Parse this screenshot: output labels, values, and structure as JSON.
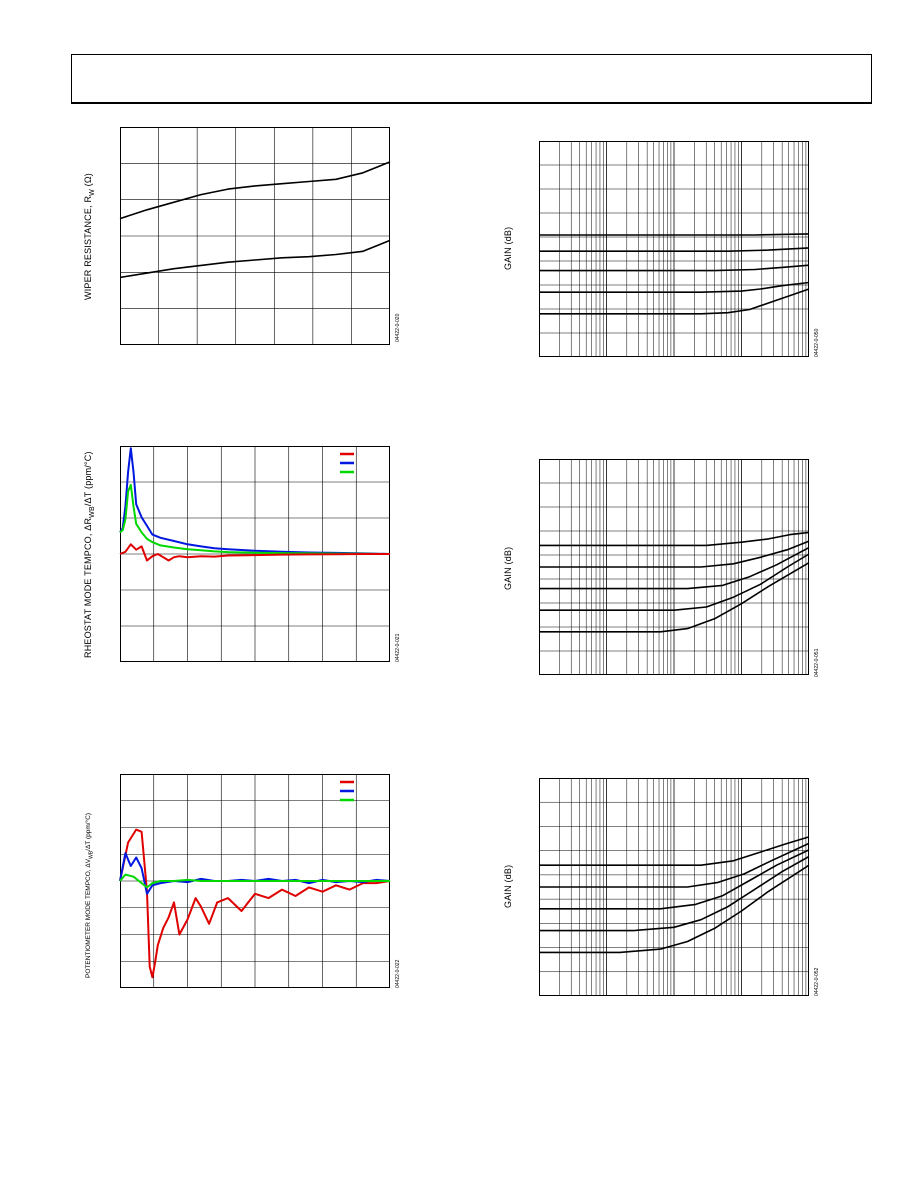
{
  "figures": [
    {
      "id": "fig-wiper",
      "ylabel": "WIPER RESISTANCE, R",
      "ylabel_sub": "W",
      "ylabel_suffix": " (Ω)",
      "figure_id": "04422-0-020"
    },
    {
      "id": "fig-rheostat",
      "ylabel": "RHEOSTAT MODE TEMPCO, ΔR",
      "ylabel_sub": "WB",
      "ylabel_suffix": "/ΔT (ppm/°C)",
      "figure_id": "04422-0-021"
    },
    {
      "id": "fig-pot",
      "ylabel": "POTENTIOMETER MODE TEMPCO, ΔV",
      "ylabel_sub": "WB",
      "ylabel_suffix": "/ΔT (ppm/°C)",
      "figure_id": "04422-0-022"
    },
    {
      "id": "fig-gain1",
      "ylabel": "GAIN (dB)",
      "figure_id": "04422-0-050"
    },
    {
      "id": "fig-gain2",
      "ylabel": "GAIN (dB)",
      "figure_id": "04422-0-051"
    },
    {
      "id": "fig-gain3",
      "ylabel": "GAIN (dB)",
      "figure_id": "04422-0-052"
    }
  ],
  "chart_data": [
    {
      "type": "line",
      "series": [
        {
          "color": "#000000",
          "x": [
            0,
            0.1,
            0.2,
            0.3,
            0.4,
            0.5,
            0.6,
            0.7,
            0.8,
            0.9,
            1.0
          ],
          "y": [
            0.58,
            0.62,
            0.655,
            0.69,
            0.715,
            0.73,
            0.74,
            0.75,
            0.76,
            0.79,
            0.84
          ]
        },
        {
          "color": "#000000",
          "x": [
            0,
            0.1,
            0.2,
            0.3,
            0.4,
            0.5,
            0.6,
            0.7,
            0.8,
            0.9,
            1.0
          ],
          "y": [
            0.31,
            0.33,
            0.35,
            0.365,
            0.38,
            0.39,
            0.4,
            0.405,
            0.415,
            0.43,
            0.48
          ]
        }
      ],
      "grid": true,
      "grid_cols": 7,
      "grid_rows": 6
    },
    {
      "type": "line",
      "legend": {
        "placement": "top-right",
        "colors": [
          "#e00000",
          "#0018e0",
          "#00d800"
        ]
      },
      "series": [
        {
          "color": "#0018e0",
          "x": [
            0,
            0.01,
            0.02,
            0.03,
            0.04,
            0.05,
            0.06,
            0.08,
            0.1,
            0.12,
            0.15,
            0.2,
            0.25,
            0.3,
            0.35,
            0.4,
            0.5,
            0.6,
            0.7,
            0.8,
            0.9,
            1.0
          ],
          "y": [
            0.6,
            0.62,
            0.72,
            0.88,
            0.99,
            0.88,
            0.73,
            0.67,
            0.63,
            0.59,
            0.575,
            0.56,
            0.545,
            0.535,
            0.527,
            0.522,
            0.515,
            0.51,
            0.507,
            0.505,
            0.503,
            0.5
          ]
        },
        {
          "color": "#00d800",
          "x": [
            0,
            0.01,
            0.02,
            0.03,
            0.04,
            0.05,
            0.06,
            0.08,
            0.1,
            0.12,
            0.15,
            0.2,
            0.25,
            0.3,
            0.35,
            0.4,
            0.5,
            0.6,
            0.7,
            0.8,
            0.9,
            1.0
          ],
          "y": [
            0.6,
            0.61,
            0.66,
            0.79,
            0.82,
            0.72,
            0.64,
            0.6,
            0.57,
            0.555,
            0.54,
            0.53,
            0.522,
            0.517,
            0.512,
            0.509,
            0.506,
            0.504,
            0.503,
            0.502,
            0.501,
            0.5
          ]
        },
        {
          "color": "#e00000",
          "x": [
            0,
            0.02,
            0.04,
            0.06,
            0.08,
            0.1,
            0.12,
            0.14,
            0.16,
            0.18,
            0.2,
            0.22,
            0.25,
            0.3,
            0.35,
            0.4,
            0.5,
            0.6,
            0.7,
            0.8,
            0.9,
            1.0
          ],
          "y": [
            0.5,
            0.51,
            0.545,
            0.52,
            0.535,
            0.47,
            0.49,
            0.5,
            0.485,
            0.47,
            0.485,
            0.49,
            0.485,
            0.49,
            0.488,
            0.493,
            0.495,
            0.497,
            0.498,
            0.499,
            0.5,
            0.5
          ]
        }
      ],
      "grid": true,
      "grid_cols": 8,
      "grid_rows": 6
    },
    {
      "type": "line",
      "legend": {
        "placement": "top-right",
        "colors": [
          "#e00000",
          "#0018e0",
          "#00d800"
        ]
      },
      "series": [
        {
          "color": "#e00000",
          "x": [
            0,
            0.03,
            0.06,
            0.08,
            0.1,
            0.11,
            0.12,
            0.13,
            0.14,
            0.16,
            0.18,
            0.2,
            0.22,
            0.25,
            0.28,
            0.3,
            0.33,
            0.36,
            0.4,
            0.45,
            0.5,
            0.55,
            0.6,
            0.65,
            0.7,
            0.75,
            0.8,
            0.85,
            0.9,
            0.95,
            1.0
          ],
          "y": [
            0.5,
            0.68,
            0.74,
            0.73,
            0.45,
            0.1,
            0.05,
            0.12,
            0.2,
            0.28,
            0.33,
            0.4,
            0.25,
            0.32,
            0.42,
            0.38,
            0.3,
            0.4,
            0.42,
            0.36,
            0.44,
            0.42,
            0.46,
            0.43,
            0.47,
            0.45,
            0.48,
            0.46,
            0.49,
            0.49,
            0.5
          ]
        },
        {
          "color": "#0018e0",
          "x": [
            0,
            0.02,
            0.04,
            0.06,
            0.08,
            0.1,
            0.12,
            0.15,
            0.2,
            0.25,
            0.3,
            0.35,
            0.4,
            0.45,
            0.5,
            0.55,
            0.6,
            0.65,
            0.7,
            0.75,
            0.8,
            0.85,
            0.9,
            0.95,
            1.0
          ],
          "y": [
            0.5,
            0.63,
            0.57,
            0.61,
            0.56,
            0.44,
            0.48,
            0.49,
            0.5,
            0.495,
            0.51,
            0.5,
            0.5,
            0.505,
            0.5,
            0.51,
            0.5,
            0.505,
            0.49,
            0.505,
            0.495,
            0.5,
            0.495,
            0.505,
            0.5
          ]
        },
        {
          "color": "#00d800",
          "x": [
            0,
            0.02,
            0.05,
            0.08,
            0.1,
            0.12,
            0.15,
            0.2,
            0.25,
            0.3,
            0.4,
            0.5,
            0.6,
            0.7,
            0.8,
            0.9,
            1.0
          ],
          "y": [
            0.5,
            0.53,
            0.52,
            0.49,
            0.47,
            0.49,
            0.5,
            0.5,
            0.505,
            0.5,
            0.5,
            0.5,
            0.5,
            0.5,
            0.5,
            0.5,
            0.5
          ]
        }
      ],
      "grid": true,
      "grid_cols": 8,
      "grid_rows": 8
    },
    {
      "type": "line",
      "xscale": "log",
      "series": [
        {
          "color": "#000000",
          "x": [
            0,
            0.6,
            0.7,
            0.78,
            0.85,
            0.92,
            1.0
          ],
          "y": [
            0.2,
            0.2,
            0.205,
            0.22,
            0.25,
            0.28,
            0.315
          ]
        },
        {
          "color": "#000000",
          "x": [
            0,
            0.6,
            0.75,
            0.82,
            0.9,
            1.0
          ],
          "y": [
            0.3,
            0.3,
            0.305,
            0.315,
            0.33,
            0.345
          ]
        },
        {
          "color": "#000000",
          "x": [
            0,
            0.65,
            0.8,
            0.9,
            1.0
          ],
          "y": [
            0.4,
            0.4,
            0.405,
            0.415,
            0.425
          ]
        },
        {
          "color": "#000000",
          "x": [
            0,
            0.7,
            0.85,
            1.0
          ],
          "y": [
            0.49,
            0.49,
            0.495,
            0.505
          ]
        },
        {
          "color": "#000000",
          "x": [
            0,
            0.8,
            1.0
          ],
          "y": [
            0.565,
            0.565,
            0.57
          ]
        }
      ],
      "grid": true
    },
    {
      "type": "line",
      "xscale": "log",
      "series": [
        {
          "color": "#000000",
          "x": [
            0,
            0.45,
            0.55,
            0.65,
            0.75,
            0.85,
            1.0
          ],
          "y": [
            0.2,
            0.2,
            0.215,
            0.26,
            0.33,
            0.41,
            0.52
          ]
        },
        {
          "color": "#000000",
          "x": [
            0,
            0.5,
            0.62,
            0.72,
            0.82,
            0.92,
            1.0
          ],
          "y": [
            0.3,
            0.3,
            0.315,
            0.36,
            0.42,
            0.5,
            0.56
          ]
        },
        {
          "color": "#000000",
          "x": [
            0,
            0.55,
            0.68,
            0.78,
            0.88,
            1.0
          ],
          "y": [
            0.4,
            0.4,
            0.415,
            0.455,
            0.51,
            0.59
          ]
        },
        {
          "color": "#000000",
          "x": [
            0,
            0.6,
            0.72,
            0.82,
            0.92,
            1.0
          ],
          "y": [
            0.5,
            0.5,
            0.515,
            0.545,
            0.58,
            0.62
          ]
        },
        {
          "color": "#000000",
          "x": [
            0,
            0.62,
            0.75,
            0.85,
            0.93,
            1.0
          ],
          "y": [
            0.6,
            0.6,
            0.615,
            0.63,
            0.65,
            0.66
          ]
        }
      ],
      "grid": true
    },
    {
      "type": "line",
      "xscale": "log",
      "series": [
        {
          "color": "#000000",
          "x": [
            0,
            0.3,
            0.45,
            0.55,
            0.65,
            0.75,
            0.85,
            1.0
          ],
          "y": [
            0.2,
            0.2,
            0.215,
            0.25,
            0.31,
            0.39,
            0.48,
            0.6
          ]
        },
        {
          "color": "#000000",
          "x": [
            0,
            0.35,
            0.5,
            0.6,
            0.7,
            0.8,
            0.9,
            1.0
          ],
          "y": [
            0.3,
            0.3,
            0.315,
            0.35,
            0.41,
            0.49,
            0.57,
            0.64
          ]
        },
        {
          "color": "#000000",
          "x": [
            0,
            0.45,
            0.58,
            0.68,
            0.78,
            0.88,
            1.0
          ],
          "y": [
            0.4,
            0.4,
            0.42,
            0.46,
            0.53,
            0.6,
            0.67
          ]
        },
        {
          "color": "#000000",
          "x": [
            0,
            0.55,
            0.66,
            0.76,
            0.86,
            1.0
          ],
          "y": [
            0.5,
            0.5,
            0.52,
            0.56,
            0.62,
            0.7
          ]
        },
        {
          "color": "#000000",
          "x": [
            0,
            0.6,
            0.72,
            0.82,
            0.92,
            1.0
          ],
          "y": [
            0.6,
            0.6,
            0.62,
            0.66,
            0.7,
            0.73
          ]
        }
      ],
      "grid": true
    }
  ]
}
